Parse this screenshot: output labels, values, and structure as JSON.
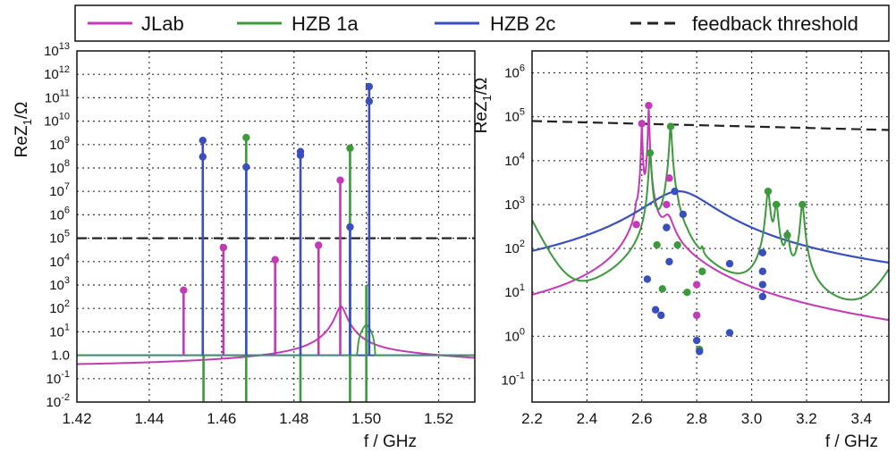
{
  "legend": [
    {
      "name": "JLab",
      "color": "#c23ab8",
      "dashed": false
    },
    {
      "name": "HZB 1a",
      "color": "#3c9a3c",
      "dashed": false
    },
    {
      "name": "HZB 2c",
      "color": "#3a4fbf",
      "dashed": false
    },
    {
      "name": "feedback threshold",
      "color": "#222222",
      "dashed": true
    }
  ],
  "chart_data": [
    {
      "type": "line",
      "panel": "left",
      "xlabel": "f / GHz",
      "ylabel_main": "ReZ",
      "ylabel_sub": "1",
      "ylabel_tail": "/Ω",
      "xlim": [
        1.42,
        1.53
      ],
      "ylim": [
        -2,
        13
      ],
      "yscale": "log",
      "grid": true,
      "x_ticks": [
        "1.42",
        "1.44",
        "1.46",
        "1.48",
        "1.50",
        "1.52"
      ],
      "x_tick_values": [
        1.42,
        1.44,
        1.46,
        1.48,
        1.5,
        1.52
      ],
      "y_ticks": [
        {
          "exp": -2,
          "label": "10",
          "sup": "-2"
        },
        {
          "exp": -1,
          "label": "10",
          "sup": "-1"
        },
        {
          "exp": 0,
          "label": "1.0",
          "sup": ""
        },
        {
          "exp": 1,
          "label": "10",
          "sup": "1"
        },
        {
          "exp": 2,
          "label": "10",
          "sup": "2"
        },
        {
          "exp": 3,
          "label": "10",
          "sup": "3"
        },
        {
          "exp": 4,
          "label": "10",
          "sup": "4"
        },
        {
          "exp": 5,
          "label": "10",
          "sup": "5"
        },
        {
          "exp": 6,
          "label": "10",
          "sup": "6"
        },
        {
          "exp": 7,
          "label": "10",
          "sup": "7"
        },
        {
          "exp": 8,
          "label": "10",
          "sup": "8"
        },
        {
          "exp": 9,
          "label": "10",
          "sup": "9"
        },
        {
          "exp": 10,
          "label": "10",
          "sup": "10"
        },
        {
          "exp": 11,
          "label": "10",
          "sup": "11"
        },
        {
          "exp": 12,
          "label": "10",
          "sup": "12"
        },
        {
          "exp": 13,
          "label": "10",
          "sup": "13"
        }
      ],
      "threshold": 100000,
      "series": [
        {
          "name": "JLab",
          "color": "#c23ab8",
          "peaks": [
            [
              1.4495,
              600
            ],
            [
              1.4605,
              40000
            ],
            [
              1.4748,
              12000
            ],
            [
              1.4868,
              50000
            ],
            [
              1.4928,
              30000000
            ]
          ],
          "points": [
            [
              1.4495,
              600
            ],
            [
              1.4605,
              40000
            ],
            [
              1.4748,
              12000
            ],
            [
              1.4868,
              50000
            ],
            [
              1.4928,
              30000000
            ]
          ]
        },
        {
          "name": "HZB 1a",
          "color": "#3c9a3c",
          "peaks": [
            [
              1.455,
              0.01
            ],
            [
              1.4668,
              2000000000
            ],
            [
              1.4818,
              0.01
            ],
            [
              1.4955,
              700000000
            ],
            [
              1.5,
              0.01
            ]
          ],
          "points": [
            [
              1.4668,
              2000000000
            ],
            [
              1.4955,
              700000000
            ]
          ]
        },
        {
          "name": "HZB 2c",
          "color": "#3a4fbf",
          "peaks": [
            [
              1.4548,
              1500000000
            ],
            [
              1.4668,
              110000000
            ],
            [
              1.4818,
              500000000
            ],
            [
              1.4955,
              300000
            ],
            [
              1.5008,
              300000000000
            ]
          ],
          "points": [
            [
              1.4548,
              1500000000
            ],
            [
              1.4548,
              300000000
            ],
            [
              1.4668,
              110000000
            ],
            [
              1.4818,
              500000000
            ],
            [
              1.4818,
              350000000
            ],
            [
              1.4955,
              300000
            ],
            [
              1.5008,
              300000000000
            ],
            [
              1.5008,
              70000000000
            ]
          ]
        }
      ]
    },
    {
      "type": "line",
      "panel": "right",
      "xlabel": "f / GHz",
      "ylabel_main": "ReZ",
      "ylabel_sub": "1",
      "ylabel_tail": "/Ω",
      "xlim": [
        2.2,
        3.5
      ],
      "ylim": [
        -1.5,
        6.5
      ],
      "yscale": "log",
      "grid": true,
      "x_ticks": [
        "2.2",
        "2.4",
        "2.6",
        "2.8",
        "3.0",
        "3.2",
        "3.4"
      ],
      "x_tick_values": [
        2.2,
        2.4,
        2.6,
        2.8,
        3.0,
        3.2,
        3.4
      ],
      "y_ticks": [
        {
          "exp": -1,
          "label": "10",
          "sup": "-1"
        },
        {
          "exp": 0,
          "label": "10",
          "sup": "0"
        },
        {
          "exp": 1,
          "label": "10",
          "sup": "1"
        },
        {
          "exp": 2,
          "label": "10",
          "sup": "2"
        },
        {
          "exp": 3,
          "label": "10",
          "sup": "3"
        },
        {
          "exp": 4,
          "label": "10",
          "sup": "4"
        },
        {
          "exp": 5,
          "label": "10",
          "sup": "5"
        },
        {
          "exp": 6,
          "label": "10",
          "sup": "6"
        }
      ],
      "threshold_line": [
        [
          2.2,
          80000
        ],
        [
          3.5,
          50000
        ]
      ],
      "series": [
        {
          "name": "JLab",
          "color": "#c23ab8",
          "points": [
            [
              2.58,
              350
            ],
            [
              2.6,
              70000
            ],
            [
              2.625,
              180000
            ],
            [
              2.69,
              1000
            ],
            [
              2.7,
              4000
            ],
            [
              2.8,
              15
            ],
            [
              2.8,
              3
            ]
          ]
        },
        {
          "name": "HZB 1a",
          "color": "#3c9a3c",
          "points": [
            [
              2.63,
              15000
            ],
            [
              2.655,
              120
            ],
            [
              2.675,
              12
            ],
            [
              2.69,
              300
            ],
            [
              2.705,
              60000
            ],
            [
              2.73,
              120
            ],
            [
              2.765,
              10
            ],
            [
              2.82,
              30
            ],
            [
              2.81,
              0.5
            ],
            [
              3.06,
              2000
            ],
            [
              3.09,
              1000
            ],
            [
              3.13,
              200
            ],
            [
              3.185,
              1000
            ]
          ]
        },
        {
          "name": "HZB 2c",
          "color": "#3a4fbf",
          "points": [
            [
              2.62,
              20
            ],
            [
              2.65,
              4
            ],
            [
              2.67,
              3
            ],
            [
              2.69,
              300
            ],
            [
              2.72,
              2000
            ],
            [
              2.75,
              600
            ],
            [
              2.7,
              50
            ],
            [
              2.8,
              0.8
            ],
            [
              2.81,
              0.45
            ],
            [
              2.92,
              45
            ],
            [
              2.92,
              1.2
            ],
            [
              3.04,
              80
            ],
            [
              3.04,
              30
            ],
            [
              3.04,
              15
            ],
            [
              3.04,
              8
            ]
          ]
        }
      ]
    }
  ]
}
